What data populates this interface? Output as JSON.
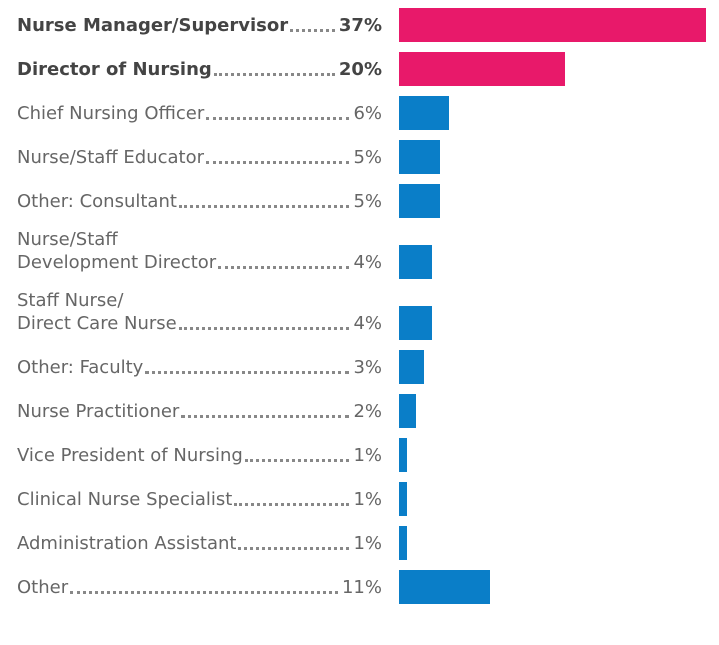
{
  "chart_data": {
    "type": "bar",
    "orientation": "horizontal",
    "categories": [
      "Nurse Manager/Supervisor",
      "Director of Nursing",
      "Chief Nursing Officer",
      "Nurse/Staff Educator",
      "Other: Consultant",
      "Nurse/Staff\nDevelopment Director",
      "Staff Nurse/\nDirect Care Nurse",
      "Other: Faculty",
      "Nurse Practitioner",
      "Vice President of Nursing",
      "Clinical Nurse Specialist",
      "Administration Assistant",
      "Other"
    ],
    "values": [
      37,
      20,
      6,
      5,
      5,
      4,
      4,
      3,
      2,
      1,
      1,
      1,
      11
    ],
    "value_labels": [
      "37%",
      "20%",
      "6%",
      "5%",
      "5%",
      "4%",
      "4%",
      "3%",
      "2%",
      "1%",
      "1%",
      "1%",
      "11%"
    ],
    "colors": [
      "#e8196a",
      "#e8196a",
      "#0a7ec8",
      "#0a7ec8",
      "#0a7ec8",
      "#0a7ec8",
      "#0a7ec8",
      "#0a7ec8",
      "#0a7ec8",
      "#0a7ec8",
      "#0a7ec8",
      "#0a7ec8",
      "#0a7ec8"
    ],
    "bold": [
      true,
      true,
      false,
      false,
      false,
      false,
      false,
      false,
      false,
      false,
      false,
      false,
      false
    ]
  }
}
